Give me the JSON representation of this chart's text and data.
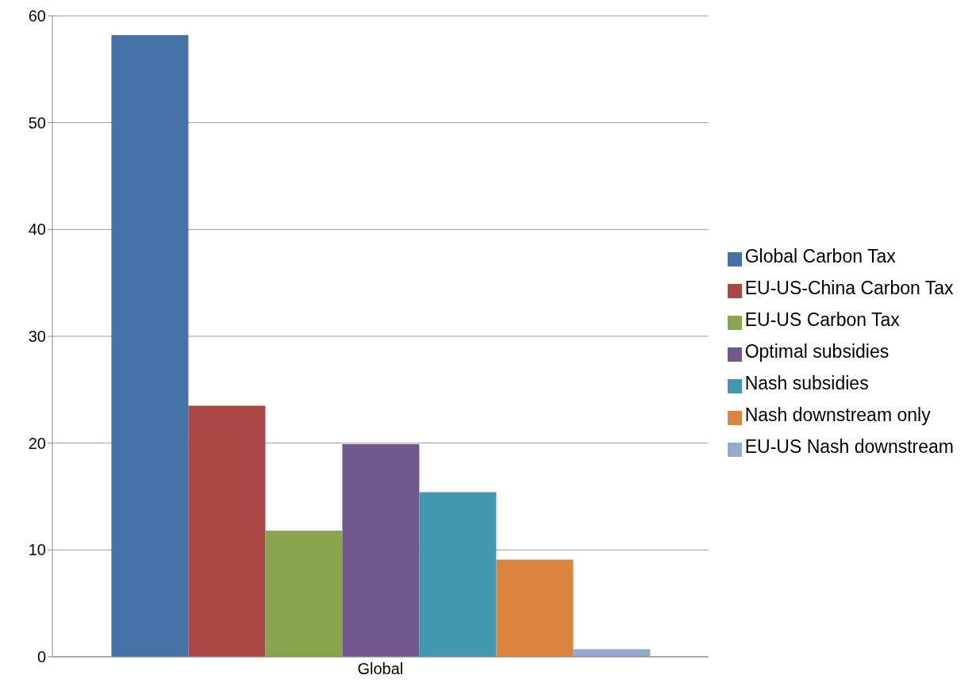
{
  "chart_data": {
    "type": "bar",
    "categories": [
      "Global"
    ],
    "series": [
      {
        "name": "Global Carbon Tax",
        "color": "#4572a7",
        "values": [
          58.2
        ]
      },
      {
        "name": "EU-US-China Carbon Tax",
        "color": "#aa4643",
        "values": [
          23.5
        ]
      },
      {
        "name": "EU-US Carbon Tax",
        "color": "#89a54e",
        "values": [
          11.8
        ]
      },
      {
        "name": "Optimal subsidies",
        "color": "#71588f",
        "values": [
          19.9
        ]
      },
      {
        "name": "Nash subsidies",
        "color": "#4198af",
        "values": [
          15.4
        ]
      },
      {
        "name": "Nash downstream only",
        "color": "#db843d",
        "values": [
          9.1
        ]
      },
      {
        "name": "EU-US Nash downstream",
        "color": "#93a9cf",
        "values": [
          0.7
        ]
      }
    ],
    "ylim": [
      0,
      60
    ],
    "yticks": [
      0,
      10,
      20,
      30,
      40,
      50,
      60
    ],
    "grid": "y",
    "legend": "right"
  }
}
